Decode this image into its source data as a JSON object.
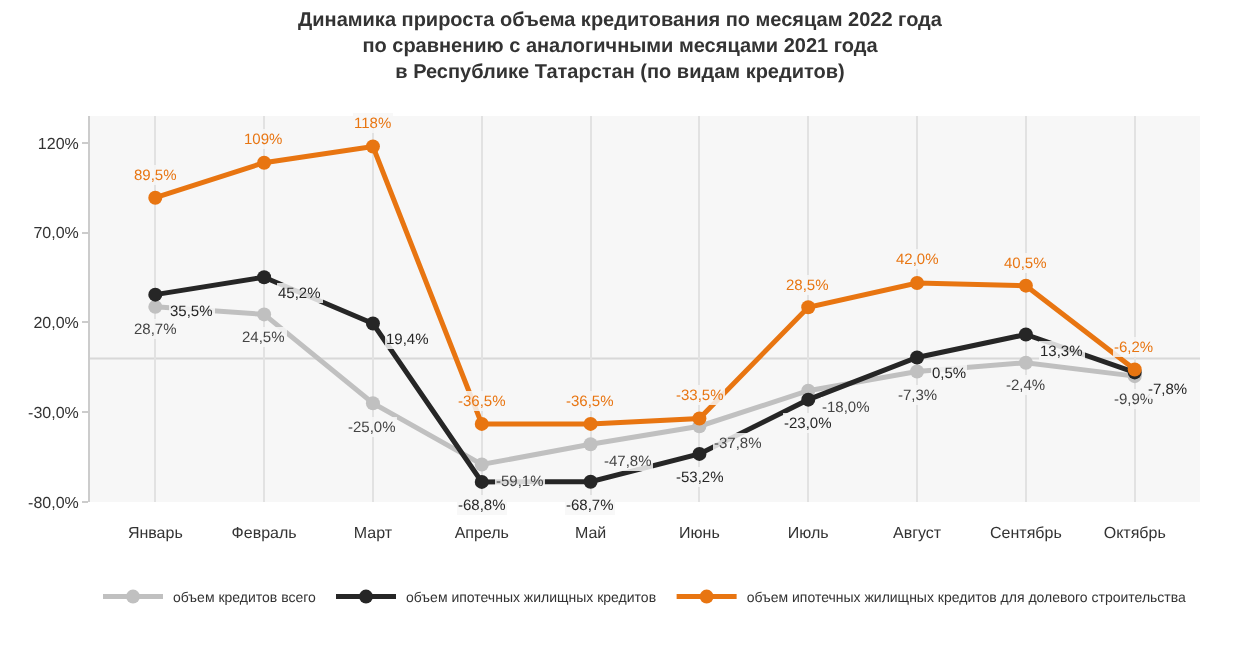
{
  "chart_data": {
    "type": "line",
    "title": "Динамика прироста объема кредитования по месяцам 2022 года\nпо сравнению с аналогичными месяцами 2021 года\nв Республике Татарстан (по видам кредитов)",
    "categories": [
      "Январь",
      "Февраль",
      "Март",
      "Апрель",
      "Май",
      "Июнь",
      "Июль",
      "Август",
      "Сентябрь",
      "Октябрь"
    ],
    "series": [
      {
        "name": "объем кредитов всего",
        "color": "#c0c0c0",
        "values": [
          28.7,
          24.5,
          -25.0,
          -59.1,
          -47.8,
          -37.8,
          -18.0,
          -7.3,
          -2.4,
          -9.9
        ],
        "value_labels": [
          "28,7%",
          "24,5%",
          "-25,0%",
          "-59,1%",
          "-47,8%",
          "-37,8%",
          "-18,0%",
          "-7,3%",
          "-2,4%",
          "-9,9%"
        ]
      },
      {
        "name": "объем ипотечных жилищных кредитов",
        "color": "#262626",
        "values": [
          35.5,
          45.2,
          19.4,
          -68.8,
          -68.7,
          -53.2,
          -23.0,
          0.5,
          13.3,
          -7.8
        ],
        "value_labels": [
          "35,5%",
          "45,2%",
          "19,4%",
          "-68,8%",
          "-68,7%",
          "-53,2%",
          "-23,0%",
          "0,5%",
          "13,3%",
          "-7,8%"
        ]
      },
      {
        "name": "объем ипотечных жилищных кредитов для долевого строительства",
        "color": "#e87511",
        "values": [
          89.5,
          109,
          118,
          -36.5,
          -36.5,
          -33.5,
          28.5,
          42.0,
          40.5,
          -6.2
        ],
        "value_labels": [
          "89,5%",
          "109%",
          "118%",
          "-36,5%",
          "-36,5%",
          "-33,5%",
          "28,5%",
          "42,0%",
          "40,5%",
          "-6,2%"
        ]
      }
    ],
    "ylim": [
      -80,
      135
    ],
    "yticks": [
      {
        "value": -80,
        "label": "-80,0%"
      },
      {
        "value": -30,
        "label": "-30,0%"
      },
      {
        "value": 20,
        "label": "20,0%"
      },
      {
        "value": 70,
        "label": "70,0%"
      },
      {
        "value": 120,
        "label": "120%"
      }
    ],
    "ref_lines": [
      {
        "axis": "y",
        "value": 0,
        "color": "#d8d8d8"
      }
    ],
    "grid": "x",
    "legend": "bottom",
    "marker": "circle",
    "line_style": "solid"
  }
}
